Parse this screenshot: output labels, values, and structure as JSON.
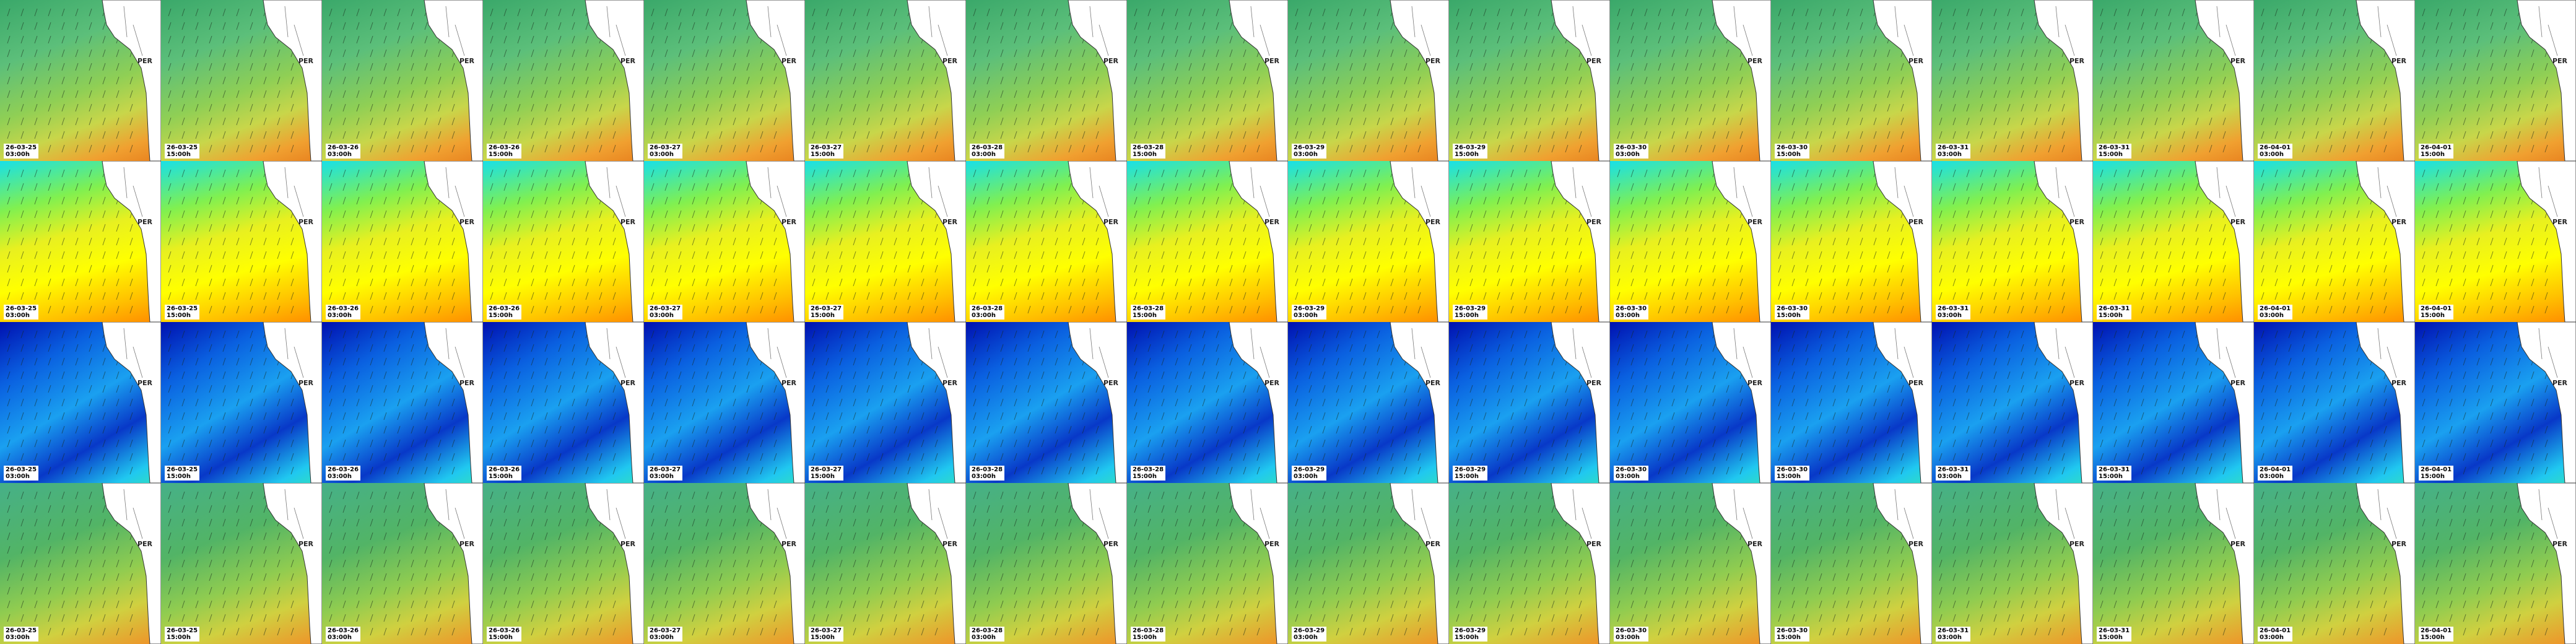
{
  "columns": [
    {
      "date": "26-03-25",
      "time": "03:00h"
    },
    {
      "date": "26-03-25",
      "time": "15:00h"
    },
    {
      "date": "26-03-26",
      "time": "03:00h"
    },
    {
      "date": "26-03-26",
      "time": "15:00h"
    },
    {
      "date": "26-03-27",
      "time": "03:00h"
    },
    {
      "date": "26-03-27",
      "time": "15:00h"
    },
    {
      "date": "26-03-28",
      "time": "03:00h"
    },
    {
      "date": "26-03-28",
      "time": "15:00h"
    },
    {
      "date": "26-03-29",
      "time": "03:00h"
    },
    {
      "date": "26-03-29",
      "time": "15:00h"
    },
    {
      "date": "26-03-30",
      "time": "03:00h"
    },
    {
      "date": "26-03-30",
      "time": "15:00h"
    },
    {
      "date": "26-03-31",
      "time": "03:00h"
    },
    {
      "date": "26-03-31",
      "time": "15:00h"
    },
    {
      "date": "26-04-01",
      "time": "03:00h"
    },
    {
      "date": "26-04-01",
      "time": "15:00h"
    }
  ],
  "country": "PER"
}
